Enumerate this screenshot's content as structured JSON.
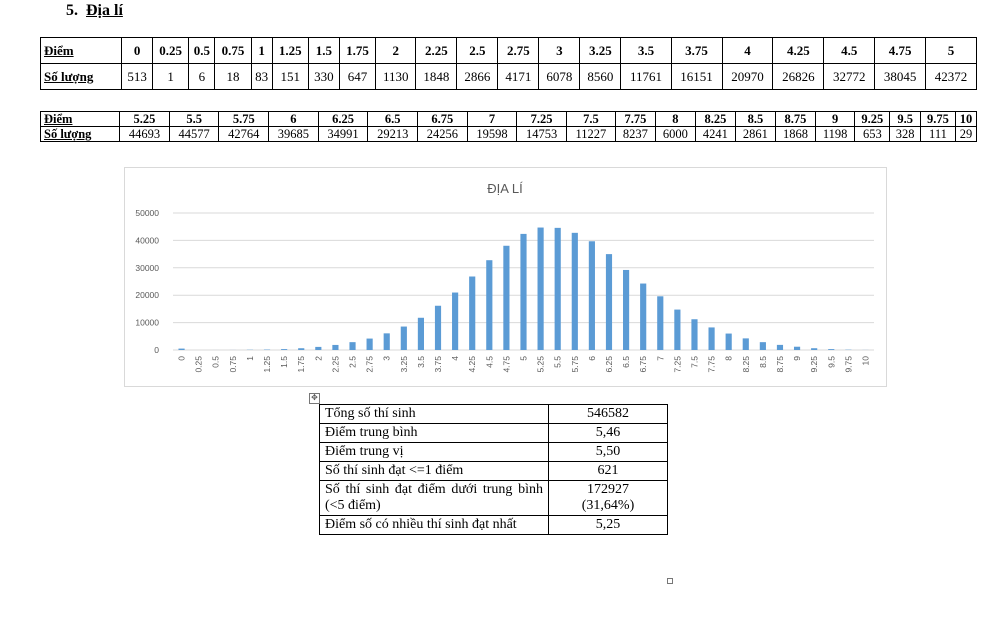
{
  "section": {
    "number": "5.",
    "title": "Địa lí"
  },
  "table1": {
    "label_score": "Điểm",
    "label_count": "Số lượng",
    "scores": [
      "0",
      "0.25",
      "0.5",
      "0.75",
      "1",
      "1.25",
      "1.5",
      "1.75",
      "2",
      "2.25",
      "2.5",
      "2.75",
      "3",
      "3.25",
      "3.5",
      "3.75",
      "4",
      "4.25",
      "4.5",
      "4.75",
      "5"
    ],
    "counts": [
      "513",
      "1",
      "6",
      "18",
      "83",
      "151",
      "330",
      "647",
      "1130",
      "1848",
      "2866",
      "4171",
      "6078",
      "8560",
      "11761",
      "16151",
      "20970",
      "26826",
      "32772",
      "38045",
      "42372"
    ]
  },
  "table2": {
    "label_score": "Điểm",
    "label_count": "Số lượng",
    "scores": [
      "5.25",
      "5.5",
      "5.75",
      "6",
      "6.25",
      "6.5",
      "6.75",
      "7",
      "7.25",
      "7.5",
      "7.75",
      "8",
      "8.25",
      "8.5",
      "8.75",
      "9",
      "9.25",
      "9.5",
      "9.75",
      "10"
    ],
    "counts": [
      "44693",
      "44577",
      "42764",
      "39685",
      "34991",
      "29213",
      "24256",
      "19598",
      "14753",
      "11227",
      "8237",
      "6000",
      "4241",
      "2861",
      "1868",
      "1198",
      "653",
      "328",
      "111",
      "29"
    ]
  },
  "chart_data": {
    "type": "bar",
    "title": "ĐỊA LÍ",
    "xlabel": "",
    "ylabel": "",
    "ylim": [
      0,
      50000
    ],
    "yticks": [
      0,
      10000,
      20000,
      30000,
      40000,
      50000
    ],
    "grid": true,
    "legend": "none",
    "bar_color": "#5b9bd5",
    "categories": [
      "0",
      "0.25",
      "0.5",
      "0.75",
      "1",
      "1.25",
      "1.5",
      "1.75",
      "2",
      "2.25",
      "2.5",
      "2.75",
      "3",
      "3.25",
      "3.5",
      "3.75",
      "4",
      "4.25",
      "4.5",
      "4.75",
      "5",
      "5.25",
      "5.5",
      "5.75",
      "6",
      "6.25",
      "6.5",
      "6.75",
      "7",
      "7.25",
      "7.5",
      "7.75",
      "8",
      "8.25",
      "8.5",
      "8.75",
      "9",
      "9.25",
      "9.5",
      "9.75",
      "10"
    ],
    "values": [
      513,
      1,
      6,
      18,
      83,
      151,
      330,
      647,
      1130,
      1848,
      2866,
      4171,
      6078,
      8560,
      11761,
      16151,
      20970,
      26826,
      32772,
      38045,
      42372,
      44693,
      44577,
      42764,
      39685,
      34991,
      29213,
      24256,
      19598,
      14753,
      11227,
      8237,
      6000,
      4241,
      2861,
      1868,
      1198,
      653,
      328,
      111,
      29
    ]
  },
  "stats": [
    {
      "label": "Tổng số thí sinh",
      "value": "546582"
    },
    {
      "label": "Điểm trung bình",
      "value": "5,46"
    },
    {
      "label": "Điểm trung vị",
      "value": "5,50"
    },
    {
      "label": "Số thí sinh đạt <=1 điểm",
      "value": "621"
    },
    {
      "label": "Số thí sinh đạt điểm dưới trung bình (<5 điểm)",
      "value": "172927",
      "value2": "(31,64%)"
    },
    {
      "label": "Điểm số có nhiều thí sinh đạt nhất",
      "value": "5,25"
    }
  ],
  "handle_glyph": "✥"
}
